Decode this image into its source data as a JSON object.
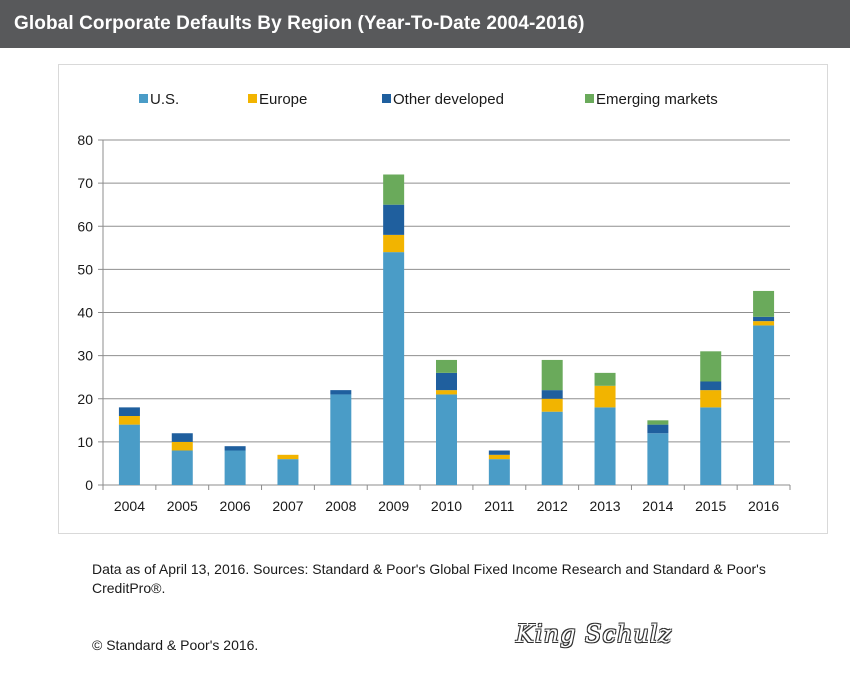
{
  "title": "Global Corporate Defaults By Region (Year-To-Date 2004-2016)",
  "source_note": "Data as of April 13, 2016. Sources: Standard & Poor's Global Fixed Income Research  and Standard & Poor's CreditPro®.",
  "copyright": "© Standard & Poor's 2016.",
  "signature": "King Schulz",
  "chart_data": {
    "type": "bar",
    "stacked": true,
    "categories": [
      "2004",
      "2005",
      "2006",
      "2007",
      "2008",
      "2009",
      "2010",
      "2011",
      "2012",
      "2013",
      "2014",
      "2015",
      "2016"
    ],
    "series": [
      {
        "name": "U.S.",
        "color": "#4a9cc7",
        "values": [
          14,
          8,
          8,
          6,
          21,
          54,
          21,
          6,
          17,
          18,
          12,
          18,
          37
        ]
      },
      {
        "name": "Europe",
        "color": "#f2b400",
        "values": [
          2,
          2,
          0,
          1,
          0,
          4,
          1,
          1,
          3,
          5,
          0,
          4,
          1
        ]
      },
      {
        "name": "Other developed",
        "color": "#1f5f9e",
        "values": [
          2,
          2,
          1,
          0,
          1,
          7,
          4,
          1,
          2,
          0,
          2,
          2,
          1
        ]
      },
      {
        "name": "Emerging markets",
        "color": "#6aaa5b",
        "values": [
          0,
          0,
          0,
          0,
          0,
          7,
          3,
          0,
          7,
          3,
          1,
          7,
          6
        ]
      }
    ],
    "yticks": [
      0,
      10,
      20,
      30,
      40,
      50,
      60,
      70,
      80
    ],
    "ylim": [
      0,
      80
    ],
    "grid": true,
    "legend_position": "top"
  }
}
